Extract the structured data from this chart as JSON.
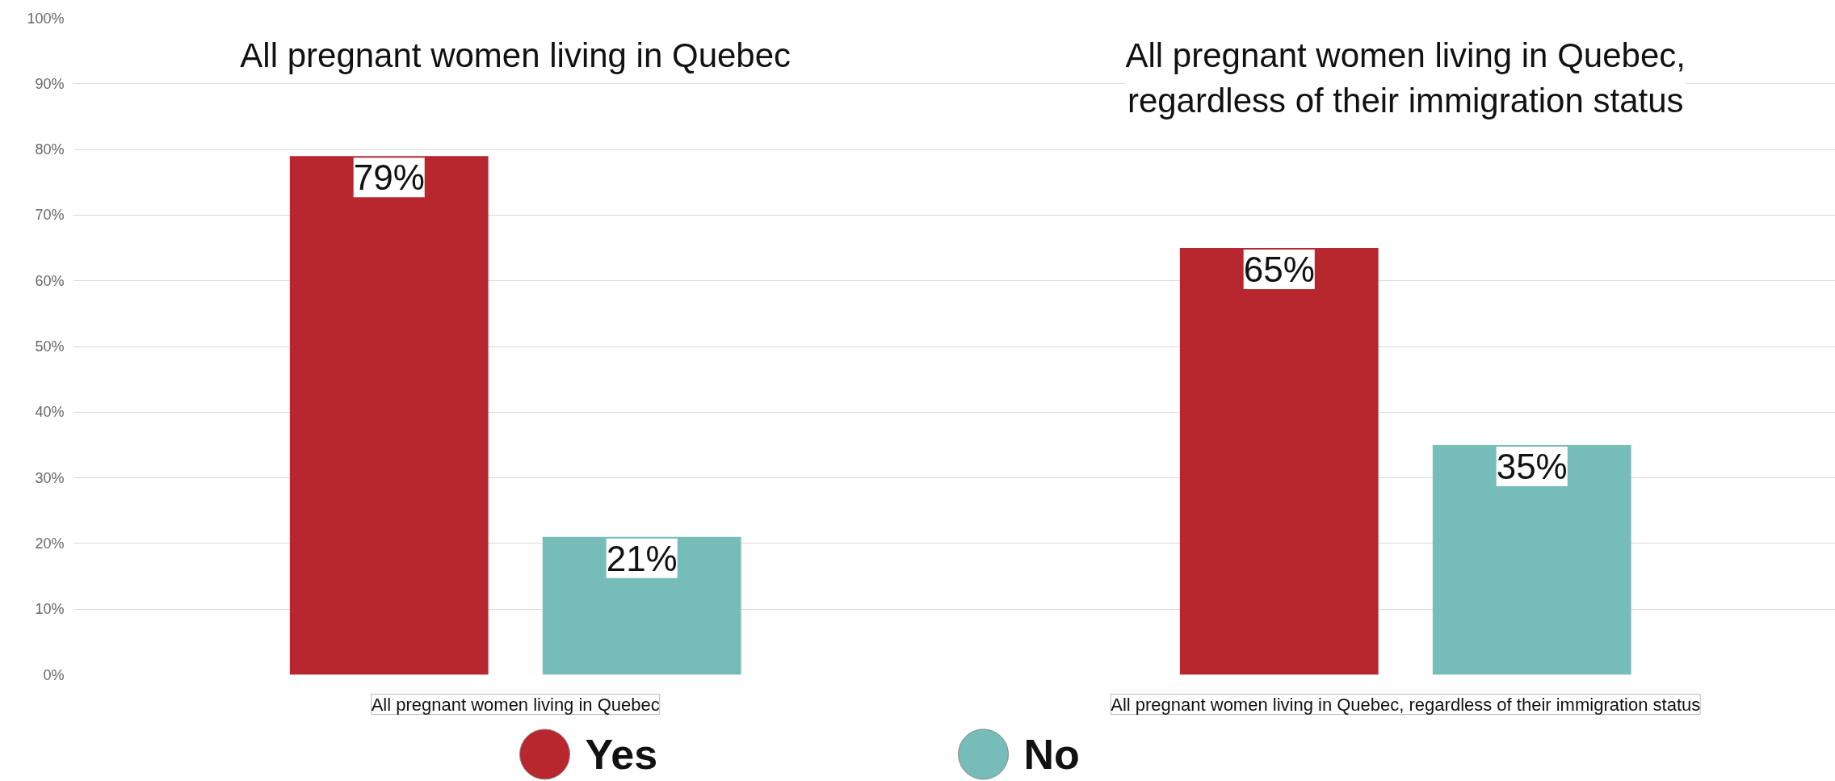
{
  "chart_data": {
    "type": "bar",
    "categories": [
      "All pregnant women living in Quebec",
      "All pregnant women living in Quebec, regardless of their immigration status"
    ],
    "series": [
      {
        "name": "Yes",
        "color": "#b8272e",
        "values": [
          79,
          65
        ],
        "value_labels": [
          "79%",
          "65%"
        ]
      },
      {
        "name": "No",
        "color": "#76bcb8",
        "values": [
          21,
          35
        ],
        "value_labels": [
          "21%",
          "35%"
        ]
      }
    ],
    "annotations": [
      "All pregnant women living in Quebec",
      "All pregnant women living in Quebec, regardless of their immigration status"
    ],
    "ylim": [
      0,
      100
    ],
    "yticks": [
      {
        "value": 0,
        "label": "0%"
      },
      {
        "value": 10,
        "label": "10%"
      },
      {
        "value": 20,
        "label": "20%"
      },
      {
        "value": 30,
        "label": "30%"
      },
      {
        "value": 40,
        "label": "40%"
      },
      {
        "value": 50,
        "label": "50%"
      },
      {
        "value": 60,
        "label": "60%"
      },
      {
        "value": 70,
        "label": "70%"
      },
      {
        "value": 80,
        "label": "80%"
      },
      {
        "value": 90,
        "label": "90%"
      },
      {
        "value": 100,
        "label": "100%"
      }
    ],
    "grid": "y",
    "legend": "bottom"
  }
}
